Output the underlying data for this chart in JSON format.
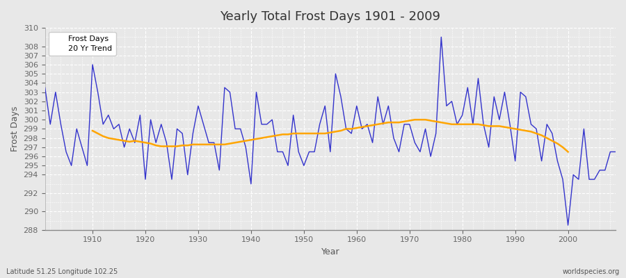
{
  "title": "Yearly Total Frost Days 1901 - 2009",
  "xlabel": "Year",
  "ylabel": "Frost Days",
  "footnote_left": "Latitude 51.25 Longitude 102.25",
  "footnote_right": "worldspecies.org",
  "legend_entries": [
    "Frost Days",
    "20 Yr Trend"
  ],
  "line_color": "#3333cc",
  "trend_color": "#FFA500",
  "fig_bg_color": "#e8e8e8",
  "plot_bg_color": "#e8e8e8",
  "ylim": [
    288,
    310
  ],
  "xlim": [
    1901,
    2009
  ],
  "yticks_major": [
    288,
    290,
    292,
    294,
    295,
    296,
    297,
    298,
    299,
    300,
    301,
    302,
    303,
    304,
    305,
    306,
    307,
    308,
    310
  ],
  "xticks_major": [
    1910,
    1920,
    1930,
    1940,
    1950,
    1960,
    1970,
    1980,
    1990,
    2000
  ],
  "years": [
    1901,
    1902,
    1903,
    1904,
    1905,
    1906,
    1907,
    1908,
    1909,
    1910,
    1911,
    1912,
    1913,
    1914,
    1915,
    1916,
    1917,
    1918,
    1919,
    1920,
    1921,
    1922,
    1923,
    1924,
    1925,
    1926,
    1927,
    1928,
    1929,
    1930,
    1931,
    1932,
    1933,
    1934,
    1935,
    1936,
    1937,
    1938,
    1939,
    1940,
    1941,
    1942,
    1943,
    1944,
    1945,
    1946,
    1947,
    1948,
    1949,
    1950,
    1951,
    1952,
    1953,
    1954,
    1955,
    1956,
    1957,
    1958,
    1959,
    1960,
    1961,
    1962,
    1963,
    1964,
    1965,
    1966,
    1967,
    1968,
    1969,
    1970,
    1971,
    1972,
    1973,
    1974,
    1975,
    1976,
    1977,
    1978,
    1979,
    1980,
    1981,
    1982,
    1983,
    1984,
    1985,
    1986,
    1987,
    1988,
    1989,
    1990,
    1991,
    1992,
    1993,
    1994,
    1995,
    1996,
    1997,
    1998,
    1999,
    2000,
    2001,
    2002,
    2003,
    2004,
    2005,
    2006,
    2007,
    2008,
    2009
  ],
  "frost_days": [
    303.5,
    299.5,
    303.0,
    299.5,
    296.5,
    295.0,
    299.0,
    297.0,
    295.0,
    306.0,
    303.0,
    299.5,
    300.5,
    299.0,
    299.5,
    297.0,
    299.0,
    297.5,
    300.5,
    293.5,
    300.0,
    297.5,
    299.5,
    297.5,
    293.5,
    299.0,
    298.5,
    294.0,
    298.5,
    301.5,
    299.5,
    297.5,
    297.5,
    294.5,
    303.5,
    303.0,
    299.0,
    299.0,
    297.0,
    293.0,
    303.0,
    299.5,
    299.5,
    300.0,
    296.5,
    296.5,
    295.0,
    300.5,
    296.5,
    295.0,
    296.5,
    296.5,
    299.5,
    301.5,
    296.5,
    305.0,
    302.5,
    299.0,
    298.5,
    301.5,
    299.0,
    299.5,
    297.5,
    302.5,
    299.5,
    301.5,
    298.0,
    296.5,
    299.5,
    299.5,
    297.5,
    296.5,
    299.0,
    296.0,
    298.5,
    309.0,
    301.5,
    302.0,
    299.5,
    300.5,
    303.5,
    299.5,
    304.5,
    299.5,
    297.0,
    302.5,
    300.0,
    303.0,
    299.5,
    295.5,
    303.0,
    302.5,
    299.5,
    299.0,
    295.5,
    299.5,
    298.5,
    295.5,
    293.5,
    288.5,
    294.0,
    293.5,
    299.0,
    293.5,
    293.5,
    294.5,
    294.5,
    296.5,
    296.5
  ],
  "trend_years": [
    1910,
    1911,
    1912,
    1913,
    1914,
    1915,
    1916,
    1917,
    1918,
    1919,
    1920,
    1921,
    1922,
    1923,
    1924,
    1925,
    1926,
    1927,
    1928,
    1929,
    1930,
    1931,
    1932,
    1933,
    1934,
    1935,
    1936,
    1937,
    1938,
    1939,
    1940,
    1941,
    1942,
    1943,
    1944,
    1945,
    1946,
    1947,
    1948,
    1949,
    1950,
    1951,
    1952,
    1953,
    1954,
    1955,
    1956,
    1957,
    1958,
    1959,
    1960,
    1961,
    1962,
    1963,
    1964,
    1965,
    1966,
    1967,
    1968,
    1969,
    1970,
    1971,
    1972,
    1973,
    1974,
    1975,
    1976,
    1977,
    1978,
    1979,
    1980,
    1981,
    1982,
    1983,
    1984,
    1985,
    1986,
    1987,
    1988,
    1989,
    1990,
    1991,
    1992,
    1993,
    1994,
    1995,
    1996,
    1997,
    1998,
    1999,
    2000
  ],
  "trend_values": [
    298.8,
    298.5,
    298.2,
    298.0,
    297.9,
    297.8,
    297.7,
    297.6,
    297.7,
    297.6,
    297.5,
    297.4,
    297.2,
    297.1,
    297.1,
    297.1,
    297.1,
    297.2,
    297.2,
    297.3,
    297.3,
    297.3,
    297.3,
    297.3,
    297.3,
    297.3,
    297.4,
    297.5,
    297.6,
    297.7,
    297.8,
    297.9,
    298.0,
    298.1,
    298.2,
    298.3,
    298.4,
    298.4,
    298.5,
    298.5,
    298.5,
    298.5,
    298.5,
    298.5,
    298.5,
    298.6,
    298.7,
    298.8,
    299.0,
    299.0,
    299.1,
    299.2,
    299.3,
    299.4,
    299.5,
    299.6,
    299.7,
    299.7,
    299.7,
    299.8,
    299.9,
    300.0,
    300.0,
    300.0,
    299.9,
    299.8,
    299.7,
    299.6,
    299.5,
    299.5,
    299.5,
    299.5,
    299.5,
    299.5,
    299.4,
    299.3,
    299.3,
    299.3,
    299.2,
    299.1,
    299.0,
    298.9,
    298.8,
    298.7,
    298.5,
    298.3,
    298.0,
    297.7,
    297.4,
    297.0,
    296.5
  ]
}
